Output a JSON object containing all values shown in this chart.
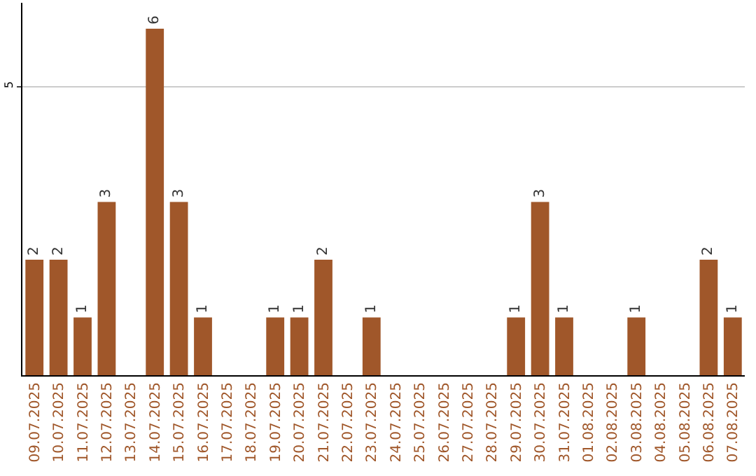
{
  "chart_data": {
    "type": "bar",
    "categories": [
      "09.07.2025",
      "10.07.2025",
      "11.07.2025",
      "12.07.2025",
      "13.07.2025",
      "14.07.2025",
      "15.07.2025",
      "16.07.2025",
      "17.07.2025",
      "18.07.2025",
      "19.07.2025",
      "20.07.2025",
      "21.07.2025",
      "22.07.2025",
      "23.07.2025",
      "24.07.2025",
      "25.07.2025",
      "26.07.2025",
      "27.07.2025",
      "28.07.2025",
      "29.07.2025",
      "30.07.2025",
      "31.07.2025",
      "01.08.2025",
      "02.08.2025",
      "03.08.2025",
      "04.08.2025",
      "05.08.2025",
      "06.08.2025",
      "07.08.2025"
    ],
    "values": [
      2,
      2,
      1,
      3,
      0,
      6,
      3,
      1,
      0,
      0,
      1,
      1,
      2,
      0,
      1,
      0,
      0,
      0,
      0,
      0,
      1,
      3,
      1,
      0,
      0,
      1,
      0,
      0,
      2,
      1
    ],
    "value_labels": [
      "2",
      "2",
      "1",
      "3",
      null,
      "6",
      "3",
      "1",
      null,
      null,
      "1",
      "1",
      "2",
      null,
      "1",
      null,
      null,
      null,
      null,
      null,
      "1",
      "3",
      "1",
      null,
      null,
      "1",
      null,
      null,
      "2",
      "1"
    ],
    "color": "#a0572a",
    "ylim": [
      0,
      6.45
    ],
    "yticks": [
      5
    ],
    "grid": "y",
    "legend": false
  }
}
